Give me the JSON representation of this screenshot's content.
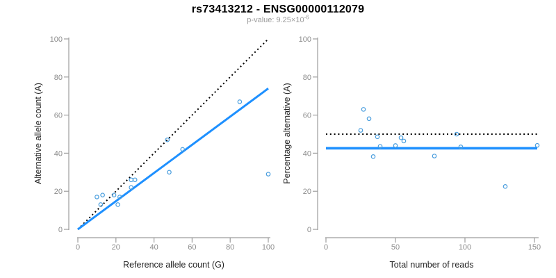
{
  "header": {
    "title": "rs73413212 - ENSG00000112079",
    "subtitle_prefix": "p-value: ",
    "subtitle_base": "9.25×10",
    "subtitle_exponent": "-6"
  },
  "colors": {
    "accent_line": "#1E90FF",
    "point_stroke": "#4A9EDE",
    "identity_line": "#000000",
    "axis": "#9C9C9C",
    "tick_label": "#8C8C8C",
    "axis_title": "#262626",
    "title": "#000000",
    "subtitle": "#9B9B9B"
  },
  "chart_data": [
    {
      "type": "scatter",
      "name": "allele-counts-scatter",
      "xlabel": "Reference allele count (G)",
      "ylabel": "Alternative allele count (A)",
      "xlim": [
        0,
        100
      ],
      "ylim": [
        0,
        100
      ],
      "xticks": [
        0,
        20,
        40,
        60,
        80,
        100
      ],
      "yticks": [
        0,
        20,
        40,
        60,
        80,
        100
      ],
      "grid": false,
      "legend": "none",
      "points": [
        [
          10,
          17
        ],
        [
          13,
          18
        ],
        [
          12,
          13
        ],
        [
          19,
          18
        ],
        [
          22,
          17
        ],
        [
          21,
          13
        ],
        [
          28,
          22
        ],
        [
          28,
          26
        ],
        [
          30,
          26
        ],
        [
          47,
          47
        ],
        [
          48,
          30
        ],
        [
          55,
          42
        ],
        [
          85,
          67
        ],
        [
          100,
          29
        ]
      ],
      "lines": [
        {
          "name": "identity-line",
          "style": "dotted",
          "color_key": "identity_line",
          "from": [
            0,
            0
          ],
          "to": [
            100,
            100
          ]
        },
        {
          "name": "regression-line",
          "style": "solid",
          "color_key": "accent_line",
          "from": [
            0,
            0
          ],
          "to": [
            100,
            74
          ]
        }
      ]
    },
    {
      "type": "scatter",
      "name": "percentage-vs-reads-scatter",
      "xlabel": "Total number of reads",
      "ylabel": "Percentage alternative (A)",
      "xlim": [
        0,
        153
      ],
      "ylim": [
        0,
        100
      ],
      "xticks": [
        0,
        50,
        100,
        150
      ],
      "yticks": [
        0,
        20,
        40,
        60,
        80,
        100
      ],
      "grid": false,
      "legend": "none",
      "points": [
        [
          27,
          63
        ],
        [
          31,
          58.1
        ],
        [
          25,
          52
        ],
        [
          37,
          48.6
        ],
        [
          39,
          43.6
        ],
        [
          34,
          38.2
        ],
        [
          50,
          44
        ],
        [
          54,
          48.1
        ],
        [
          56,
          46.4
        ],
        [
          78,
          38.5
        ],
        [
          94,
          50
        ],
        [
          97,
          43.3
        ],
        [
          129,
          22.5
        ],
        [
          152,
          44.1
        ]
      ],
      "lines": [
        {
          "name": "expected-percentage-line",
          "style": "dotted",
          "color_key": "identity_line",
          "y": 50
        },
        {
          "name": "mean-percentage-line",
          "style": "solid",
          "color_key": "accent_line",
          "y": 42.6
        }
      ]
    }
  ]
}
